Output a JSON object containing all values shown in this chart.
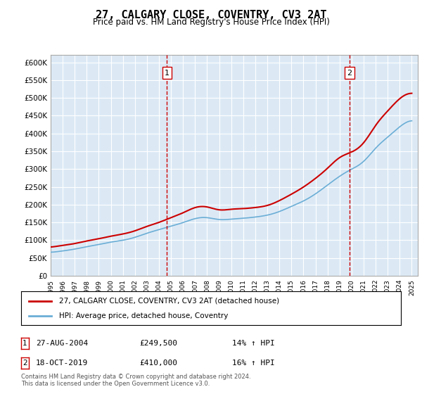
{
  "title": "27, CALGARY CLOSE, COVENTRY, CV3 2AT",
  "subtitle": "Price paid vs. HM Land Registry's House Price Index (HPI)",
  "background_color": "#dce9f5",
  "plot_bg_color": "#dce9f5",
  "hpi_color": "#6baed6",
  "price_color": "#cc0000",
  "ylim": [
    0,
    620000
  ],
  "yticks": [
    0,
    50000,
    100000,
    150000,
    200000,
    250000,
    300000,
    350000,
    400000,
    450000,
    500000,
    550000,
    600000
  ],
  "xlabel_years": [
    "1995",
    "1996",
    "1997",
    "1998",
    "1999",
    "2000",
    "2001",
    "2002",
    "2003",
    "2004",
    "2005",
    "2006",
    "2007",
    "2008",
    "2009",
    "2010",
    "2011",
    "2012",
    "2013",
    "2014",
    "2015",
    "2016",
    "2017",
    "2018",
    "2019",
    "2020",
    "2021",
    "2022",
    "2023",
    "2024",
    "2025"
  ],
  "annotation1": {
    "label": "1",
    "date_idx": 9.67,
    "value": 249500,
    "date_str": "27-AUG-2004",
    "pct": "14%",
    "direction": "↑"
  },
  "annotation2": {
    "label": "2",
    "date_idx": 24.83,
    "value": 410000,
    "date_str": "18-OCT-2019",
    "pct": "16%",
    "direction": "↑"
  },
  "legend_line1": "27, CALGARY CLOSE, COVENTRY, CV3 2AT (detached house)",
  "legend_line2": "HPI: Average price, detached house, Coventry",
  "footer": "Contains HM Land Registry data © Crown copyright and database right 2024.\nThis data is licensed under the Open Government Licence v3.0.",
  "table_rows": [
    [
      "1",
      "27-AUG-2004",
      "£249,500",
      "14% ↑ HPI"
    ],
    [
      "2",
      "18-OCT-2019",
      "£410,000",
      "16% ↑ HPI"
    ]
  ]
}
